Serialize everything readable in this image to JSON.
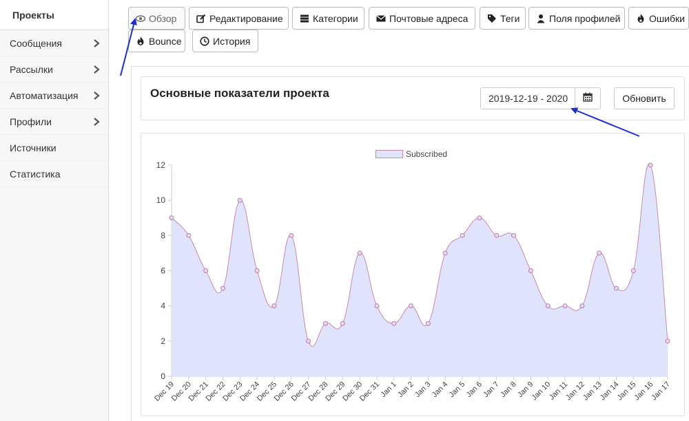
{
  "sidebar": {
    "items": [
      {
        "label": "Проекты",
        "active": true,
        "chevron": false
      },
      {
        "label": "Сообщения",
        "active": false,
        "chevron": true
      },
      {
        "label": "Рассылки",
        "active": false,
        "chevron": true
      },
      {
        "label": "Автоматизация",
        "active": false,
        "chevron": true
      },
      {
        "label": "Профили",
        "active": false,
        "chevron": true
      },
      {
        "label": "Источники",
        "active": false,
        "chevron": false
      },
      {
        "label": "Статистика",
        "active": false,
        "chevron": false
      }
    ]
  },
  "tabs": [
    {
      "label": "Обзор",
      "icon": "eye-icon",
      "active": true
    },
    {
      "label": "Редактирование",
      "icon": "edit-icon",
      "active": false
    },
    {
      "label": "Категории",
      "icon": "list-icon",
      "active": false
    },
    {
      "label": "Почтовые адреса",
      "icon": "envelope-icon",
      "active": false
    },
    {
      "label": "Теги",
      "icon": "tags-icon",
      "active": false
    },
    {
      "label": "Поля профилей",
      "icon": "user-icon",
      "active": false
    },
    {
      "label": "Ошибки",
      "icon": "fire-icon",
      "active": false
    },
    {
      "label": "Bounce",
      "icon": "fire-icon",
      "active": false
    },
    {
      "label": "История",
      "icon": "clock-icon",
      "active": false
    }
  ],
  "header": {
    "title": "Основные показатели проекта",
    "date_range": "2019-12-19 - 2020",
    "calendar_icon": "calendar-icon",
    "refresh_label": "Обновить"
  },
  "colors": {
    "area_fill": "#dfe3fb",
    "line": "#c98ab0",
    "arrow": "#1a2fd6"
  },
  "chart_data": {
    "type": "area",
    "categories": [
      "Dec 19",
      "Dec 20",
      "Dec 21",
      "Dec 22",
      "Dec 23",
      "Dec 24",
      "Dec 25",
      "Dec 26",
      "Dec 27",
      "Dec 28",
      "Dec 29",
      "Dec 30",
      "Dec 31",
      "Jan 1",
      "Jan 2",
      "Jan 3",
      "Jan 4",
      "Jan 5",
      "Jan 6",
      "Jan 7",
      "Jan 8",
      "Jan 9",
      "Jan 10",
      "Jan 11",
      "Jan 12",
      "Jan 13",
      "Jan 14",
      "Jan 15",
      "Jan 16",
      "Jan 17"
    ],
    "series": [
      {
        "name": "Subscribed",
        "values": [
          9,
          8,
          6,
          5,
          10,
          6,
          4,
          8,
          2,
          3,
          3,
          7,
          4,
          3,
          4,
          3,
          7,
          8,
          9,
          8,
          8,
          6,
          4,
          4,
          4,
          7,
          5,
          6,
          12,
          2
        ]
      }
    ],
    "ylim": [
      0,
      12
    ],
    "yticks": [
      0,
      2,
      4,
      6,
      8,
      10,
      12
    ],
    "legend": "top-center",
    "grid": false
  }
}
